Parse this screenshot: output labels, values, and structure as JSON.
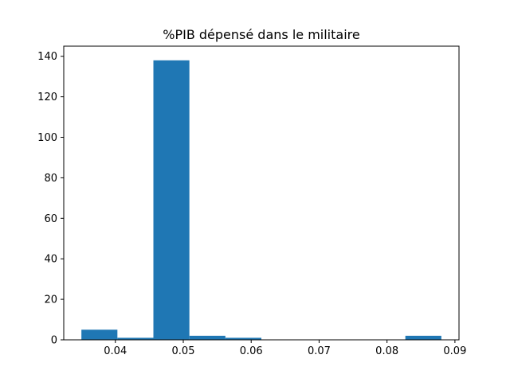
{
  "chart_data": {
    "type": "bar",
    "title": "%PIB dépensé dans le militaire",
    "xlabel": "",
    "ylabel": "",
    "bin_edges": [
      0.035,
      0.0403,
      0.0456,
      0.0509,
      0.0562,
      0.0615,
      0.0668,
      0.0721,
      0.0774,
      0.0827,
      0.088
    ],
    "values": [
      5,
      1,
      138,
      2,
      1,
      0,
      0,
      0,
      0,
      2
    ],
    "xlim": [
      0.0324,
      0.0906
    ],
    "ylim": [
      0,
      145
    ],
    "xticks": [
      0.04,
      0.05,
      0.06,
      0.07,
      0.08,
      0.09
    ],
    "xtick_labels": [
      "0.04",
      "0.05",
      "0.06",
      "0.07",
      "0.08",
      "0.09"
    ],
    "yticks": [
      0,
      20,
      40,
      60,
      80,
      100,
      120,
      140
    ],
    "ytick_labels": [
      "0",
      "20",
      "40",
      "60",
      "80",
      "100",
      "120",
      "140"
    ],
    "bar_color": "#1f77b4",
    "grid": false,
    "legend": "none"
  }
}
